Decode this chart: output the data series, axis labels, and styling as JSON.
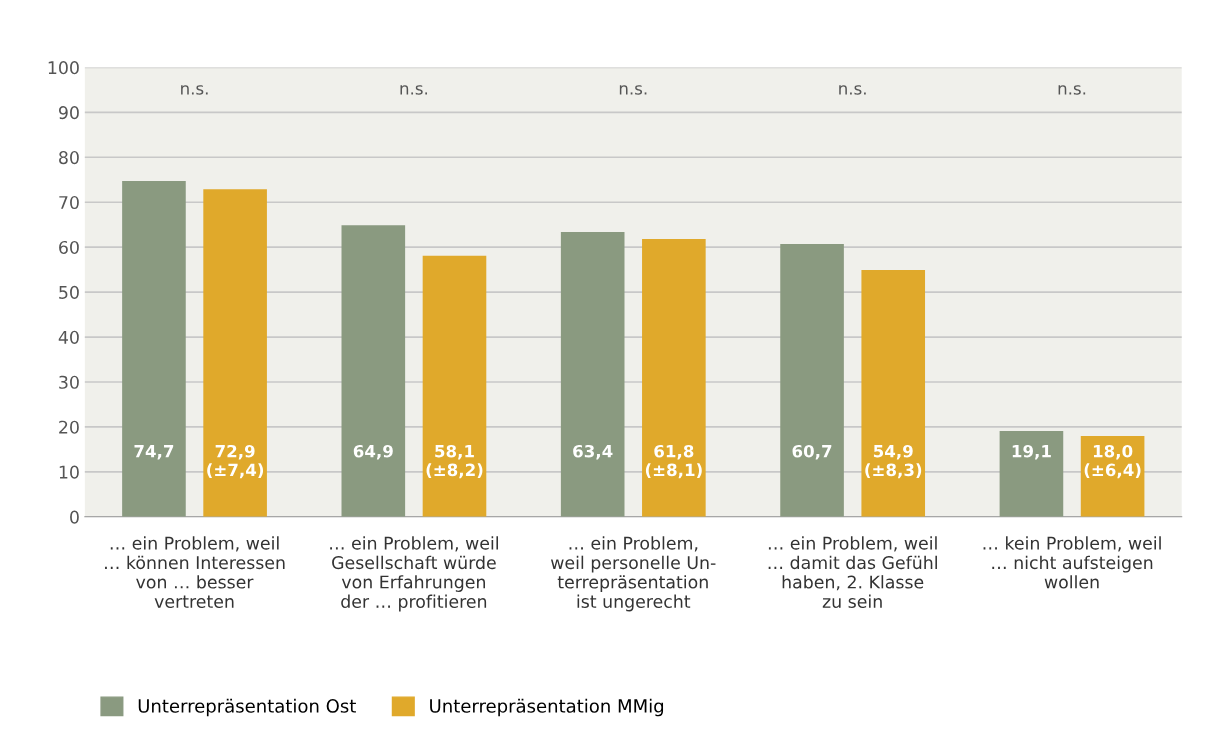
{
  "chart_data": {
    "type": "bar",
    "categories": [
      "… ein Problem, weil\n… können Interessen\nvon … besser\nvertreten",
      "… ein Problem, weil\nGesellschaft würde\nvon Erfahrungen\nder … profitieren",
      "… ein Problem,\nweil personelle Un-\nterrepräsentation\nist ungerecht",
      "… ein Problem, weil\n… damit das Gefühl\nhaben, 2. Klasse\nzu sein",
      "… kein Problem, weil\n… nicht aufsteigen\nwollen"
    ],
    "series": [
      {
        "name": "Unterrepräsentation Ost",
        "color": "#8a9a80",
        "values": [
          74.7,
          64.9,
          63.4,
          60.7,
          19.1
        ],
        "value_labels": [
          "74,7",
          "64,9",
          "63,4",
          "60,7",
          "19,1"
        ]
      },
      {
        "name": "Unterrepräsentation MMig",
        "color": "#e0a92b",
        "values": [
          72.9,
          58.1,
          61.8,
          54.9,
          18.0
        ],
        "value_labels": [
          "72,9\n(±7,4)",
          "58,1\n(±8,2)",
          "61,8\n(±8,1)",
          "54,9\n(±8,3)",
          "18,0\n(±6,4)"
        ]
      }
    ],
    "ylim": [
      0,
      100
    ],
    "yticks": [
      0,
      10,
      20,
      30,
      40,
      50,
      60,
      70,
      80,
      90,
      100
    ],
    "grid": "y",
    "legend": "bottom",
    "annotations": [
      "n.s.",
      "n.s.",
      "n.s.",
      "n.s.",
      "n.s."
    ]
  }
}
